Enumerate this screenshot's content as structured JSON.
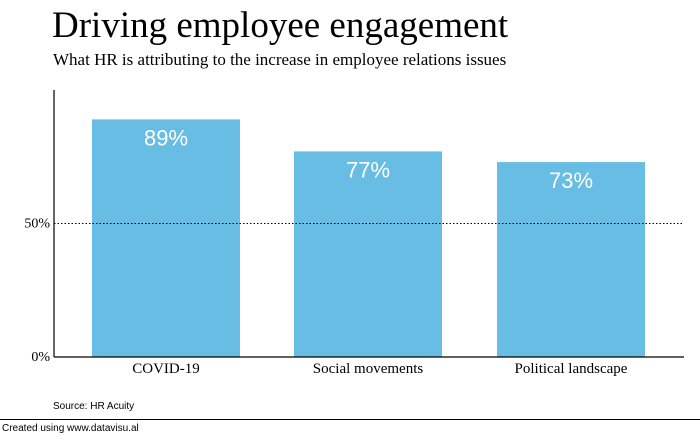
{
  "colors": {
    "bar": "#68BDE4",
    "bar_label": "#ffffff",
    "axis": "#000000",
    "reference_line": "#000000",
    "background": "#ffffff"
  },
  "chart_data": {
    "type": "bar",
    "title": "Driving employee engagement",
    "subtitle": "What HR is attributing to the increase in employee relations issues",
    "categories": [
      "COVID-19",
      "Social movements",
      "Political landscape"
    ],
    "values": [
      89,
      77,
      73
    ],
    "value_labels": [
      "89%",
      "77%",
      "73%"
    ],
    "value_unit": "%",
    "ylim": [
      0,
      100
    ],
    "yticks": [
      0,
      50
    ],
    "ytick_labels": [
      "0%",
      "50%"
    ],
    "reference_lines": [
      {
        "value": 50,
        "style": "dotted"
      }
    ],
    "xlabel": "",
    "ylabel": "",
    "grid": false,
    "legend": "none"
  },
  "source": "Source: HR Acuity",
  "footer": {
    "credit": "Created using www.datavisu.al"
  }
}
